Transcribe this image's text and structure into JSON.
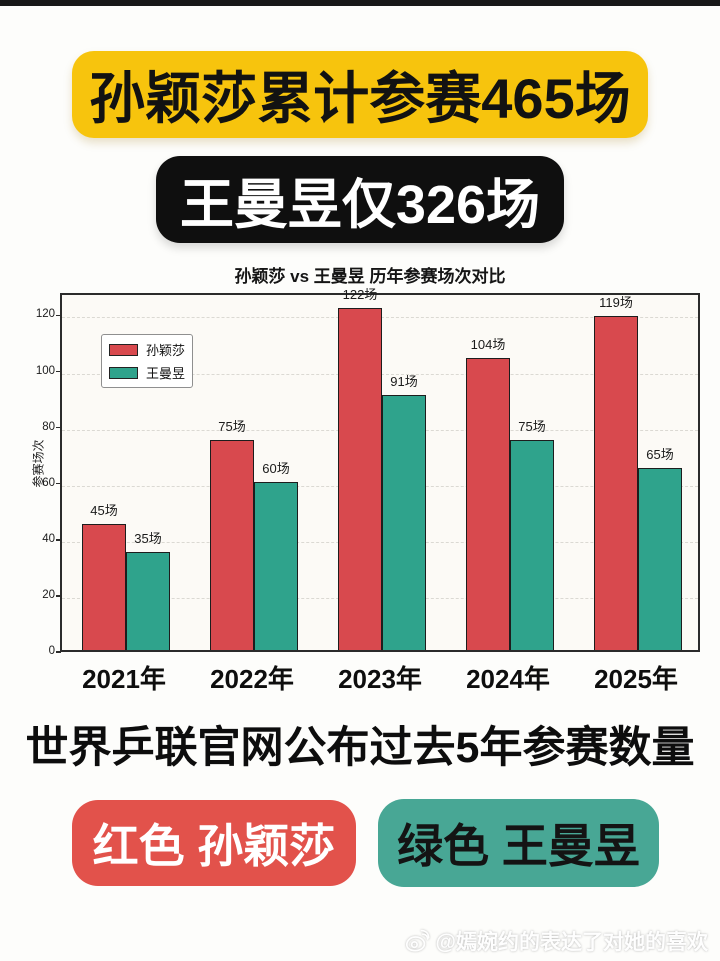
{
  "header": {
    "banner_primary": {
      "text": "孙颖莎累计参赛465场",
      "bg": "#f7c40d",
      "fg": "#121212"
    },
    "banner_secondary": {
      "text": "王曼昱仅326场",
      "bg": "#0f0f0f",
      "fg": "#ffffff"
    }
  },
  "chart_data": {
    "type": "bar",
    "title": "孙颖莎 vs 王曼昱 历年参赛场次对比",
    "ylabel": "参赛场次",
    "xlabel": "",
    "categories": [
      "2021年",
      "2022年",
      "2023年",
      "2024年",
      "2025年"
    ],
    "series": [
      {
        "name": "孙颖莎",
        "color": "#d8494e",
        "values": [
          45,
          75,
          122,
          104,
          119
        ]
      },
      {
        "name": "王曼昱",
        "color": "#2fa38c",
        "values": [
          35,
          60,
          91,
          75,
          65
        ]
      }
    ],
    "value_label_suffix": "场",
    "yticks": [
      0,
      20,
      40,
      60,
      80,
      100,
      120
    ],
    "ylim": [
      0,
      128
    ],
    "grid": true,
    "legend_position": "upper-left",
    "bar_edge_color": "#1d1d1d"
  },
  "caption": {
    "text": "世界乒联官网公布过去5年参赛数量"
  },
  "footer_badges": [
    {
      "label": "红色 孙颖莎",
      "bg": "#e2524b",
      "fg": "#ffffff"
    },
    {
      "label": "绿色 王曼昱",
      "bg": "#48a795",
      "fg": "#141414"
    }
  ],
  "watermark": {
    "icon": "weibo-icon",
    "text": "@嫣婉约的表达了对她的喜欢"
  }
}
